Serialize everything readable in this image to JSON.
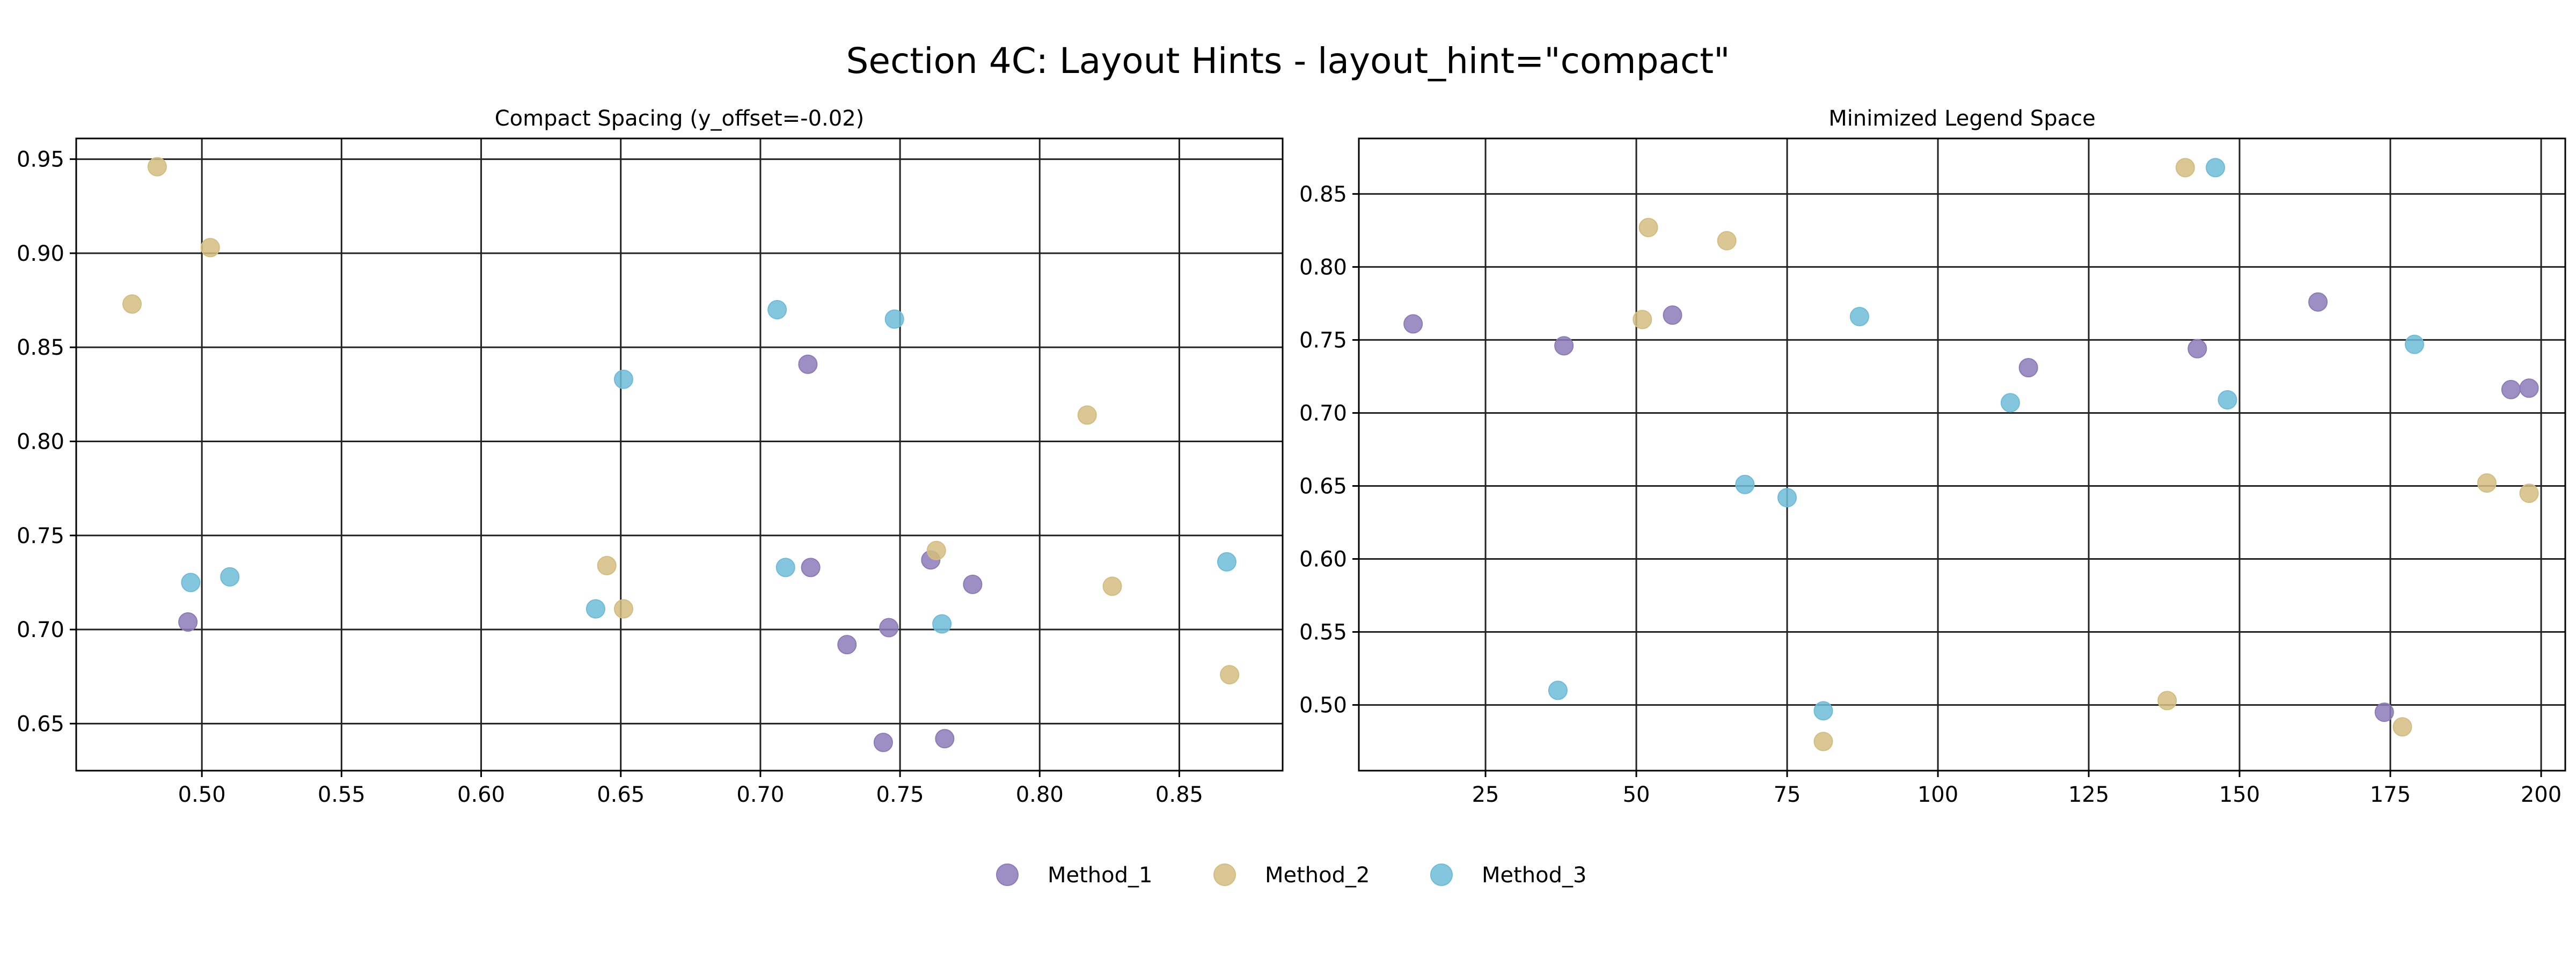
{
  "suptitle": "Section 4C: Layout Hints - layout_hint=\"compact\"",
  "colors": {
    "Method_1": "#8c7bb8",
    "Method_2": "#d4bd80",
    "Method_3": "#6fbcd8"
  },
  "legend": {
    "placement": "bottom-center",
    "entries": [
      "Method_1",
      "Method_2",
      "Method_3"
    ]
  },
  "chart_data": [
    {
      "type": "scatter",
      "title": "Compact Spacing (y_offset=-0.02)",
      "xlabel": "",
      "ylabel": "",
      "grid": true,
      "xlim": [
        0.455,
        0.887
      ],
      "ylim": [
        0.625,
        0.961
      ],
      "xticks": [
        "0.50",
        "0.55",
        "0.60",
        "0.65",
        "0.70",
        "0.75",
        "0.80",
        "0.85"
      ],
      "yticks": [
        "0.65",
        "0.70",
        "0.75",
        "0.80",
        "0.85",
        "0.90",
        "0.95"
      ],
      "series": [
        {
          "name": "Method_1",
          "x": [
            0.495,
            0.717,
            0.718,
            0.731,
            0.746,
            0.744,
            0.761,
            0.766,
            0.776
          ],
          "y": [
            0.704,
            0.841,
            0.733,
            0.692,
            0.701,
            0.64,
            0.737,
            0.642,
            0.724
          ]
        },
        {
          "name": "Method_2",
          "x": [
            0.475,
            0.484,
            0.503,
            0.645,
            0.651,
            0.763,
            0.817,
            0.826,
            0.868
          ],
          "y": [
            0.873,
            0.946,
            0.903,
            0.734,
            0.711,
            0.742,
            0.814,
            0.723,
            0.676
          ]
        },
        {
          "name": "Method_3",
          "x": [
            0.496,
            0.51,
            0.641,
            0.651,
            0.706,
            0.709,
            0.748,
            0.765,
            0.867
          ],
          "y": [
            0.725,
            0.728,
            0.711,
            0.833,
            0.87,
            0.733,
            0.865,
            0.703,
            0.736
          ]
        }
      ]
    },
    {
      "type": "scatter",
      "title": "Minimized Legend Space",
      "xlabel": "",
      "ylabel": "",
      "grid": true,
      "xlim": [
        4,
        204
      ],
      "ylim": [
        0.455,
        0.888
      ],
      "xticks": [
        "25",
        "50",
        "75",
        "100",
        "125",
        "150",
        "175",
        "200"
      ],
      "yticks": [
        "0.50",
        "0.55",
        "0.60",
        "0.65",
        "0.70",
        "0.75",
        "0.80",
        "0.85"
      ],
      "series": [
        {
          "name": "Method_1",
          "x": [
            13,
            38,
            56,
            115,
            143,
            163,
            174,
            195,
            198
          ],
          "y": [
            0.761,
            0.746,
            0.767,
            0.731,
            0.744,
            0.776,
            0.495,
            0.716,
            0.717
          ]
        },
        {
          "name": "Method_2",
          "x": [
            51,
            52,
            65,
            81,
            138,
            141,
            177,
            191,
            198
          ],
          "y": [
            0.764,
            0.827,
            0.818,
            0.475,
            0.503,
            0.868,
            0.485,
            0.652,
            0.645
          ]
        },
        {
          "name": "Method_3",
          "x": [
            37,
            68,
            75,
            81,
            87,
            112,
            146,
            148,
            179
          ],
          "y": [
            0.51,
            0.651,
            0.642,
            0.496,
            0.766,
            0.707,
            0.868,
            0.709,
            0.747
          ]
        }
      ]
    }
  ]
}
